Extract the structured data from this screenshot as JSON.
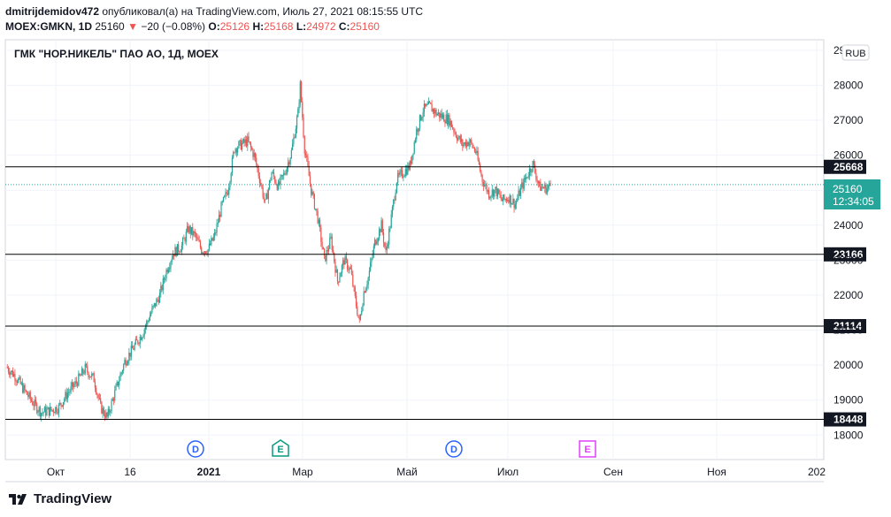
{
  "header": {
    "author": "dmitrijdemidov472",
    "published_text": "опубликовал(а) на TradingView.com, Июль 27, 2021 08:15:55 UTC",
    "symbol": "MOEX:GMKN, 1D",
    "last": "25160",
    "change": "−20 (−0.08%)",
    "o_label": "O:",
    "o": "25126",
    "h_label": "H:",
    "h": "25168",
    "l_label": "L:",
    "l": "24972",
    "c_label": "C:",
    "c": "25160"
  },
  "legend_title": "ГМК \"НОР.НИКЕЛЬ\" ПАО АО, 1Д, MOEX",
  "currency": "RUB",
  "price_tag": {
    "value": "25160",
    "countdown": "12:34:05",
    "color": "#26a69a"
  },
  "level_labels": [
    "25668",
    "23166",
    "21114",
    "18448"
  ],
  "events": [
    {
      "letter": "D",
      "kind": "dividend",
      "color": "#2962ff"
    },
    {
      "letter": "E",
      "kind": "earnings",
      "color": "#089981"
    },
    {
      "letter": "D",
      "kind": "dividend",
      "color": "#2962ff"
    },
    {
      "letter": "E",
      "kind": "earnings",
      "color": "#e040fb"
    }
  ],
  "footer": {
    "brand": "TradingView",
    "icon": "tradingview-logo-icon"
  },
  "chart_data": {
    "type": "candlestick",
    "y_ticks": [
      "29000",
      "28000",
      "27000",
      "26000",
      "25000",
      "24000",
      "23000",
      "22000",
      "21000",
      "20000",
      "19000",
      "18000"
    ],
    "ylim": [
      17300,
      29300
    ],
    "x_ticks": [
      "Окт",
      "16",
      "2021",
      "Мар",
      "Май",
      "Июл",
      "Сен",
      "Ноя",
      "202"
    ],
    "horizontal_levels": [
      25668,
      23166,
      21114,
      18448
    ],
    "last_price": 25160,
    "up_color": "#26a69a",
    "down_color": "#ef5350",
    "price_path": [
      [
        0,
        19950
      ],
      [
        8,
        19700
      ],
      [
        16,
        19300
      ],
      [
        25,
        18900
      ],
      [
        32,
        18650
      ],
      [
        40,
        18700
      ],
      [
        48,
        18800
      ],
      [
        56,
        19200
      ],
      [
        64,
        19500
      ],
      [
        72,
        19900
      ],
      [
        80,
        19600
      ],
      [
        86,
        18800
      ],
      [
        92,
        18500
      ],
      [
        100,
        19300
      ],
      [
        108,
        20100
      ],
      [
        116,
        20500
      ],
      [
        124,
        20900
      ],
      [
        132,
        21500
      ],
      [
        140,
        22000
      ],
      [
        146,
        22700
      ],
      [
        152,
        23200
      ],
      [
        160,
        23400
      ],
      [
        166,
        23900
      ],
      [
        172,
        23700
      ],
      [
        178,
        23300
      ],
      [
        184,
        23300
      ],
      [
        190,
        23700
      ],
      [
        196,
        24500
      ],
      [
        202,
        25000
      ],
      [
        208,
        26200
      ],
      [
        214,
        26300
      ],
      [
        220,
        26400
      ],
      [
        226,
        26000
      ],
      [
        232,
        25200
      ],
      [
        236,
        24600
      ],
      [
        242,
        25500
      ],
      [
        248,
        25100
      ],
      [
        254,
        25500
      ],
      [
        260,
        26100
      ],
      [
        266,
        27200
      ],
      [
        268,
        28000
      ],
      [
        272,
        26200
      ],
      [
        278,
        25000
      ],
      [
        284,
        24200
      ],
      [
        290,
        23000
      ],
      [
        296,
        23600
      ],
      [
        302,
        22400
      ],
      [
        308,
        23000
      ],
      [
        314,
        22700
      ],
      [
        318,
        21900
      ],
      [
        322,
        21200
      ],
      [
        326,
        22100
      ],
      [
        330,
        22500
      ],
      [
        336,
        23500
      ],
      [
        342,
        24000
      ],
      [
        346,
        23200
      ],
      [
        350,
        24000
      ],
      [
        356,
        25300
      ],
      [
        362,
        25500
      ],
      [
        368,
        25700
      ],
      [
        374,
        26700
      ],
      [
        380,
        27300
      ],
      [
        386,
        27400
      ],
      [
        392,
        27200
      ],
      [
        398,
        27100
      ],
      [
        404,
        27000
      ],
      [
        410,
        26600
      ],
      [
        416,
        26300
      ],
      [
        422,
        26400
      ],
      [
        428,
        26100
      ],
      [
        434,
        25300
      ],
      [
        440,
        24900
      ],
      [
        446,
        25000
      ],
      [
        452,
        24700
      ],
      [
        458,
        24800
      ],
      [
        464,
        24600
      ],
      [
        470,
        25100
      ],
      [
        476,
        25500
      ],
      [
        480,
        25750
      ],
      [
        486,
        25100
      ],
      [
        492,
        25050
      ],
      [
        496,
        25130
      ]
    ],
    "price_path_note_x": "trading-day index from first visible session"
  }
}
